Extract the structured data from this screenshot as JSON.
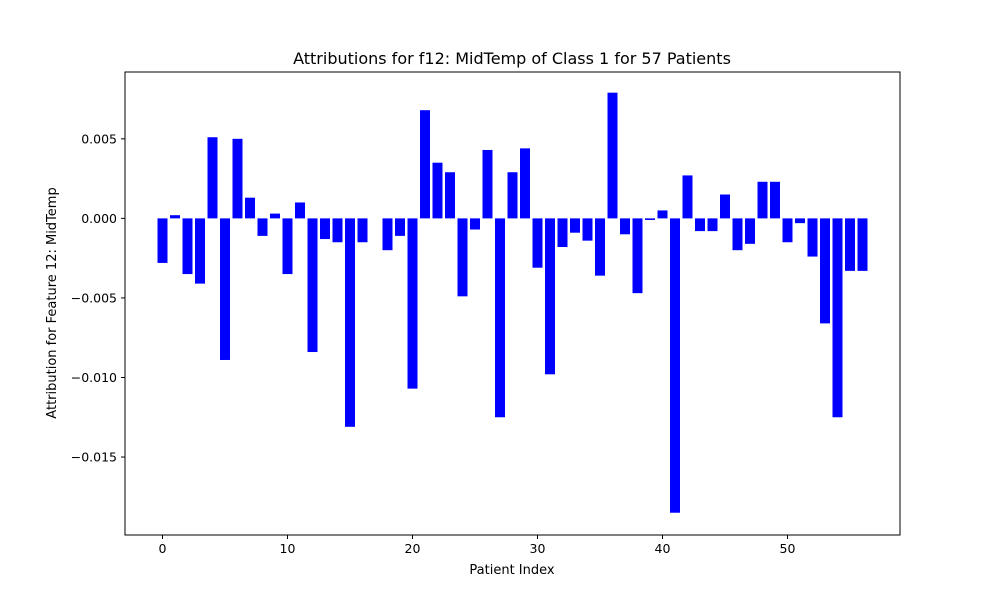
{
  "chart_data": {
    "type": "bar",
    "title": "Attributions for f12: MidTemp of Class 1 for 57 Patients",
    "xlabel": "Patient Index",
    "ylabel": "Attribution for Feature 12: MidTemp",
    "xlim": [
      -3,
      59
    ],
    "ylim": [
      -0.0199,
      0.0092
    ],
    "xticks": [
      0,
      10,
      20,
      30,
      40,
      50
    ],
    "xtick_labels": [
      "0",
      "10",
      "20",
      "30",
      "40",
      "50"
    ],
    "yticks": [
      -0.015,
      -0.01,
      -0.005,
      0.0,
      0.005
    ],
    "ytick_labels": [
      "−0.015",
      "−0.010",
      "−0.005",
      "0.000",
      "0.005"
    ],
    "bar_color": "#0000ff",
    "grid": false,
    "x": [
      0,
      1,
      2,
      3,
      4,
      5,
      6,
      7,
      8,
      9,
      10,
      11,
      12,
      13,
      14,
      15,
      16,
      17,
      18,
      19,
      20,
      21,
      22,
      23,
      24,
      25,
      26,
      27,
      28,
      29,
      30,
      31,
      32,
      33,
      34,
      35,
      36,
      37,
      38,
      39,
      40,
      41,
      42,
      43,
      44,
      45,
      46,
      47,
      48,
      49,
      50,
      51,
      52,
      53,
      54,
      55,
      56
    ],
    "values": [
      -0.0028,
      0.0002,
      -0.0035,
      -0.0041,
      0.0051,
      -0.0089,
      0.005,
      0.0013,
      -0.0011,
      0.0003,
      -0.0035,
      0.001,
      -0.0084,
      -0.0013,
      -0.0015,
      -0.0131,
      -0.0015,
      0.0,
      -0.002,
      -0.0011,
      -0.0107,
      0.0068,
      0.0035,
      0.0029,
      -0.0049,
      -0.0007,
      0.0043,
      -0.0125,
      0.0029,
      0.0044,
      -0.0031,
      -0.0098,
      -0.0018,
      -0.0009,
      -0.0014,
      -0.0036,
      0.0079,
      -0.001,
      -0.0047,
      -0.0001,
      0.0005,
      -0.0185,
      0.0027,
      -0.0008,
      -0.0008,
      0.0015,
      -0.002,
      -0.0016,
      0.0023,
      0.0023,
      -0.0015,
      -0.0003,
      -0.0024,
      -0.0066,
      -0.0125,
      -0.0033,
      -0.0033
    ]
  }
}
